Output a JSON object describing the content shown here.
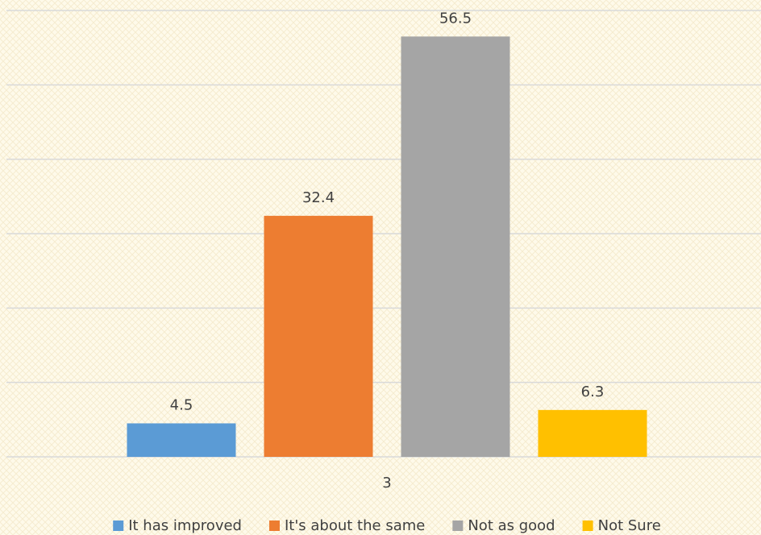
{
  "chart_data": {
    "type": "bar",
    "categories": [
      "3"
    ],
    "series": [
      {
        "name": "It has improved",
        "color": "#5b9bd5",
        "values": [
          4.5
        ]
      },
      {
        "name": "It's about the same",
        "color": "#ed7d31",
        "values": [
          32.4
        ]
      },
      {
        "name": "Not as good",
        "color": "#a5a5a5",
        "values": [
          56.5
        ]
      },
      {
        "name": "Not Sure",
        "color": "#ffc000",
        "values": [
          6.3
        ]
      }
    ],
    "ylim": [
      0,
      60
    ],
    "yticks": [
      0,
      10,
      20,
      30,
      40,
      50,
      60
    ],
    "grid": true,
    "legend": "bottom"
  }
}
